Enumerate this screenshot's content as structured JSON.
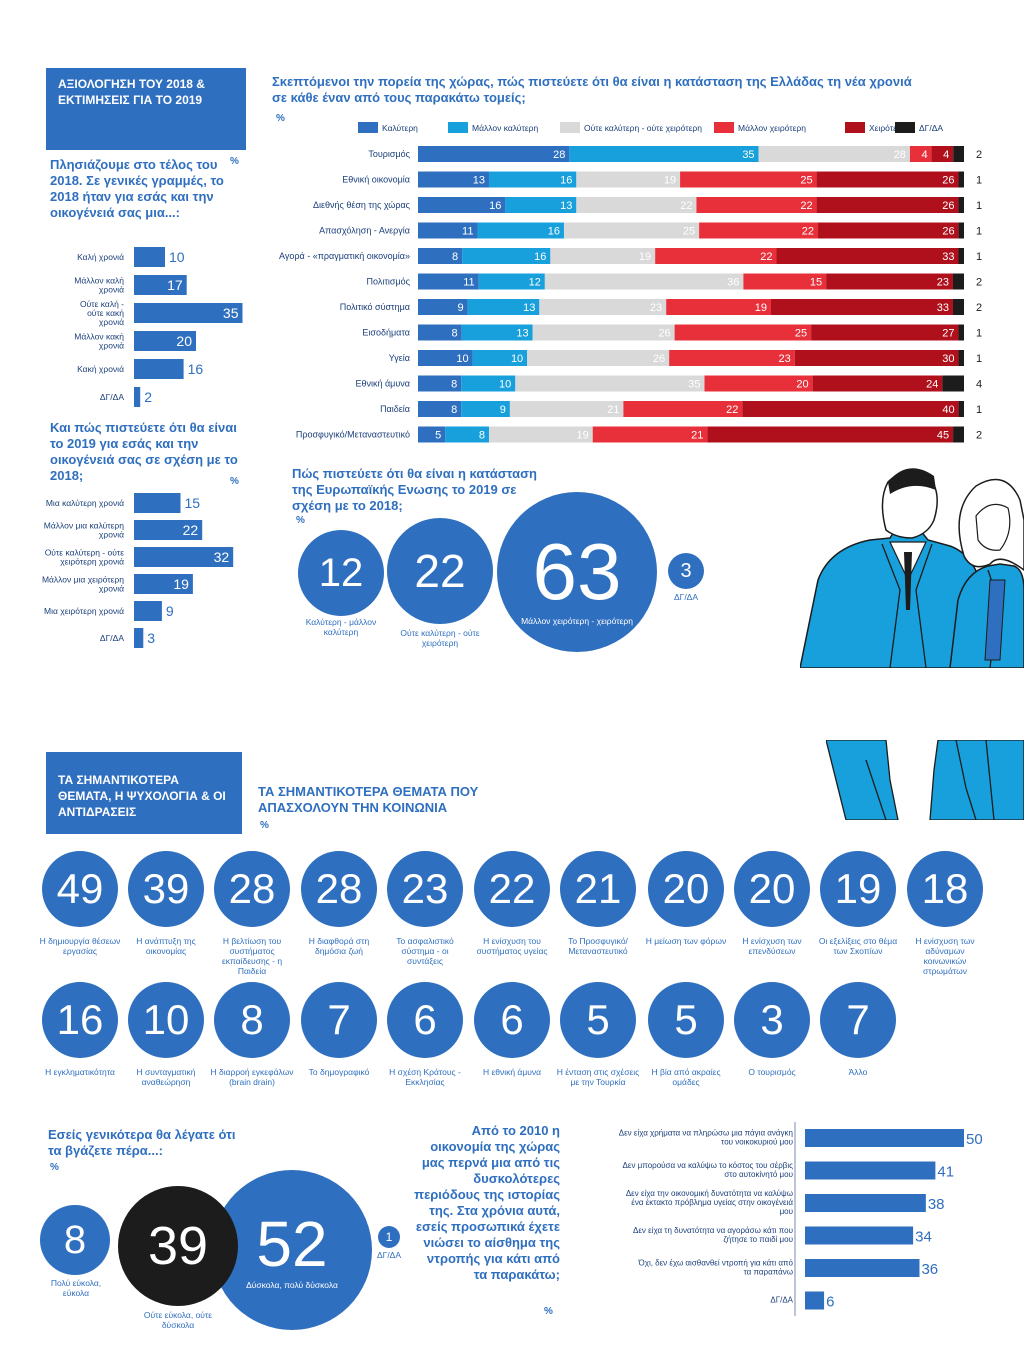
{
  "colors": {
    "blue": "#2f6fbf",
    "navy": "#1b3f7a",
    "light_blue": "#17a0dc",
    "grey": "#d9d9d9",
    "red": "#e8303a",
    "dark_red": "#b0101c",
    "black": "#1c1c1c"
  },
  "section1": {
    "banner": "ΑΞΙΟΛΟΓΗΣΗ ΤΟΥ 2018 & ΕΚΤΙΜΗΣΕΙΣ ΓΙΑ ΤΟ 2019"
  },
  "section2": {
    "banner": "ΤΑ ΣΗΜΑΝΤΙΚΟΤΕΡΑ ΘΕΜΑΤΑ, Η ΨΥΧΟΛΟΓΙΑ & ΟΙ ΑΝΤΙΔΡΑΣΕΙΣ"
  },
  "chart_data": [
    {
      "id": "year2018",
      "type": "bar",
      "orientation": "horizontal",
      "title": "Πλησιάζουμε στο τέλος του 2018. Σε γενικές γραμμές, το 2018 ήταν για εσάς και την οικογένειά σας μια...:",
      "unit": "%",
      "categories": [
        "Καλή χρονιά",
        "Μάλλον καλή χρονιά",
        "Ούτε καλή - ούτε κακή χρονιά",
        "Μάλλον κακή χρονιά",
        "Κακή χρονιά",
        "ΔΓ/ΔΑ"
      ],
      "values": [
        10,
        17,
        35,
        20,
        16,
        2
      ]
    },
    {
      "id": "year2019",
      "type": "bar",
      "orientation": "horizontal",
      "title": "Και πώς πιστεύετε ότι θα είναι το 2019 για εσάς και την οικογένειά σας σε σχέση με το 2018;",
      "unit": "%",
      "categories": [
        "Μια καλύτερη χρονιά",
        "Μάλλον μια καλύτερη χρονιά",
        "Ούτε καλύτερη - ούτε χειρότερη χρονιά",
        "Μάλλον μια χειρότερη χρονιά",
        "Μια χειρότερη χρονιά",
        "ΔΓ/ΔΑ"
      ],
      "values": [
        15,
        22,
        32,
        19,
        9,
        3
      ]
    },
    {
      "id": "sectors",
      "type": "bar",
      "orientation": "horizontal",
      "stacked": true,
      "title": "Σκεπτόμενοι την πορεία της χώρας, πώς πιστεύετε ότι θα είναι η κατάσταση της Ελλάδας τη νέα χρονιά σε κάθε έναν από τους παρακάτω τομείς;",
      "unit": "%",
      "legend_position": "top",
      "categories": [
        "Τουρισμός",
        "Εθνική οικονομία",
        "Διεθνής θέση της χώρας",
        "Απασχόληση - Ανεργία",
        "Αγορά - «πραγματική οικονομία»",
        "Πολιτισμός",
        "Πολιτικό σύστημα",
        "Εισοδήματα",
        "Υγεία",
        "Εθνική άμυνα",
        "Παιδεία",
        "Προσφυγικό/Μεταναστευτικό"
      ],
      "series": [
        {
          "name": "Καλύτερη",
          "values": [
            28,
            13,
            16,
            11,
            8,
            11,
            9,
            8,
            10,
            8,
            8,
            5
          ]
        },
        {
          "name": "Μάλλον καλύτερη",
          "values": [
            35,
            16,
            13,
            16,
            16,
            12,
            13,
            13,
            10,
            10,
            9,
            8
          ]
        },
        {
          "name": "Ούτε καλύτερη - ούτε χειρότερη",
          "values": [
            28,
            19,
            22,
            25,
            19,
            36,
            23,
            26,
            26,
            35,
            21,
            19
          ]
        },
        {
          "name": "Μάλλον χειρότερη",
          "values": [
            4,
            25,
            22,
            22,
            22,
            15,
            19,
            25,
            23,
            20,
            22,
            21
          ]
        },
        {
          "name": "Χειρότερη",
          "values": [
            4,
            26,
            26,
            26,
            33,
            23,
            33,
            27,
            30,
            24,
            40,
            45
          ]
        },
        {
          "name": "ΔΓ/ΔΑ",
          "values": [
            2,
            1,
            1,
            1,
            1,
            2,
            2,
            1,
            1,
            4,
            1,
            2
          ]
        }
      ]
    },
    {
      "id": "eu2019",
      "type": "bubble",
      "title": "Πώς πιστεύετε ότι θα είναι η κατάσταση της Ευρωπαϊκής Ενωσης το 2019 σε σχέση με το 2018;",
      "unit": "%",
      "categories": [
        "Καλύτερη - μάλλον καλύτερη",
        "Ούτε καλύτερη - ούτε χειρότερη",
        "Μάλλον χειρότερη - χειρότερη",
        "ΔΓ/ΔΑ"
      ],
      "values": [
        12,
        22,
        63,
        3
      ]
    },
    {
      "id": "issues",
      "type": "bubble",
      "title": "ΤΑ ΣΗΜΑΝΤΙΚΟΤΕΡΑ ΘΕΜΑΤΑ ΠΟΥ ΑΠΑΣΧΟΛΟΥΝ ΤΗΝ ΚΟΙΝΩΝΙΑ",
      "unit": "%",
      "categories": [
        "Η δημιουργία θέσεων εργασίας",
        "Η ανάπτυξη της οικονομίας",
        "Η βελτίωση του συστήματος εκπαίδευσης - η Παιδεία",
        "Η διαφθορά στη δημόσια ζωή",
        "Το ασφαλιστικό σύστημα - οι συντάξεις",
        "Η ενίσχυση του συστήματος υγείας",
        "Το Προσφυγικό/ Μεταναστευτικό",
        "Η μείωση των φόρων",
        "Η ενίσχυση των επενδύσεων",
        "Οι εξελίξεις στο θέμα των Σκοπίων",
        "Η ενίσχυση των αδύναμων κοινωνικών στρωμάτων",
        "Η εγκληματικότητα",
        "Η συνταγματική αναθεώρηση",
        "Η διαρροή εγκεφάλων (brain drain)",
        "Το δημογραφικό",
        "Η σχέση Κράτους - Εκκλησίας",
        "Η εθνική άμυνα",
        "Η ένταση στις σχέσεις με την Τουρκία",
        "Η βία από ακραίες ομάδες",
        "Ο τουρισμός",
        "Άλλο"
      ],
      "values": [
        49,
        39,
        28,
        28,
        23,
        22,
        21,
        20,
        20,
        19,
        18,
        16,
        10,
        8,
        7,
        6,
        6,
        5,
        5,
        3,
        7
      ]
    },
    {
      "id": "makeends",
      "type": "bubble",
      "title": "Εσείς γενικότερα θα λέγατε ότι τα βγάζετε πέρα...:",
      "unit": "%",
      "categories": [
        "Πολύ εύκολα, εύκολα",
        "Ούτε εύκολα, ούτε δύσκολα",
        "Δύσκολα, πολύ δύσκολα",
        "ΔΓ/ΔΑ"
      ],
      "values": [
        8,
        39,
        52,
        1
      ]
    },
    {
      "id": "shame",
      "type": "bar",
      "orientation": "horizontal",
      "title": "Από το 2010 η οικονομία της χώρας μας περνά μια από τις δυσκολότερες περιόδους της ιστορίας της. Στα χρόνια αυτά, εσείς προσωπικά έχετε νιώσει το αίσθημα της ντροπής για κάτι από τα παρακάτω;",
      "unit": "%",
      "categories": [
        "Δεν είχα χρήματα να πληρώσω μια πάγια ανάγκη του νοικοκυριού μου",
        "Δεν μπορούσα να καλύψω το κόστος του σέρβις στο αυτοκίνητό μου",
        "Δεν είχα την οικονομική δυνατότητα να καλύψω ένα έκτακτο πρόβλημα υγείας στην οικογένειά μου",
        "Δεν είχα τη δυνατότητα να αγοράσω κάτι που ζήτησε το παιδί μου",
        "Όχι, δεν έχω αισθανθεί ντροπή για κάτι από τα παραπάνω",
        "ΔΓ/ΔΑ"
      ],
      "values": [
        50,
        41,
        38,
        34,
        36,
        6
      ]
    }
  ]
}
